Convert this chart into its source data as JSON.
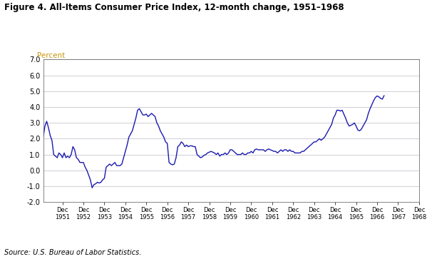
{
  "title": "Figure 4. All-Items Consumer Price Index, 12-month change, 1951–1968",
  "ylabel": "Percent",
  "source": "Source: U.S. Bureau of Labor Statistics.",
  "line_color": "#1a1ab0",
  "background_color": "#ffffff",
  "grid_color": "#c8c8d0",
  "ylim": [
    -2.0,
    7.0
  ],
  "yticks": [
    -2.0,
    -1.0,
    0.0,
    1.0,
    2.0,
    3.0,
    4.0,
    5.0,
    6.0,
    7.0
  ],
  "ytick_labels": [
    "-2.0",
    "-1.0",
    "0.0",
    "1.0",
    "2.0",
    "3.0",
    "4.0",
    "5.0",
    "6.0",
    "7.0"
  ],
  "x_tick_labels": [
    "Dec\n1951",
    "Dec\n1952",
    "Dec\n1953",
    "Dec\n1954",
    "Dec\n1955",
    "Dec\n1956",
    "Dec\n1957",
    "Dec\n1958",
    "Dec\n1959",
    "Dec\n1960",
    "Dec\n1961",
    "Dec\n1962",
    "Dec\n1963",
    "Dec\n1964",
    "Dec\n1965",
    "Dec\n1966",
    "Dec\n1967",
    "Dec\n1968"
  ],
  "values": [
    2.1,
    2.8,
    3.1,
    2.7,
    2.2,
    1.9,
    1.0,
    0.9,
    0.8,
    1.1,
    1.0,
    0.8,
    1.1,
    0.8,
    0.9,
    0.8,
    1.0,
    1.5,
    1.3,
    0.8,
    0.7,
    0.5,
    0.5,
    0.5,
    0.2,
    0.0,
    -0.3,
    -0.6,
    -1.1,
    -0.9,
    -0.85,
    -0.75,
    -0.8,
    -0.75,
    -0.6,
    -0.5,
    0.2,
    0.3,
    0.4,
    0.3,
    0.4,
    0.5,
    0.3,
    0.3,
    0.3,
    0.4,
    0.8,
    1.2,
    1.6,
    2.1,
    2.3,
    2.5,
    2.9,
    3.3,
    3.8,
    3.9,
    3.7,
    3.5,
    3.5,
    3.55,
    3.4,
    3.5,
    3.6,
    3.5,
    3.4,
    3.0,
    2.8,
    2.5,
    2.3,
    2.1,
    1.8,
    1.7,
    0.5,
    0.4,
    0.35,
    0.4,
    0.8,
    1.5,
    1.6,
    1.8,
    1.7,
    1.5,
    1.6,
    1.5,
    1.55,
    1.55,
    1.5,
    1.5,
    1.0,
    0.9,
    0.8,
    0.85,
    0.95,
    1.0,
    1.1,
    1.15,
    1.2,
    1.15,
    1.1,
    1.0,
    1.1,
    0.9,
    1.0,
    1.0,
    1.1,
    1.0,
    1.1,
    1.3,
    1.3,
    1.2,
    1.1,
    1.0,
    1.0,
    1.0,
    1.1,
    1.0,
    1.0,
    1.1,
    1.1,
    1.2,
    1.1,
    1.3,
    1.35,
    1.3,
    1.3,
    1.3,
    1.3,
    1.2,
    1.3,
    1.35,
    1.3,
    1.25,
    1.2,
    1.2,
    1.1,
    1.2,
    1.3,
    1.2,
    1.3,
    1.3,
    1.2,
    1.3,
    1.2,
    1.2,
    1.1,
    1.1,
    1.1,
    1.1,
    1.2,
    1.2,
    1.3,
    1.4,
    1.5,
    1.6,
    1.7,
    1.8,
    1.8,
    1.9,
    2.0,
    1.9,
    2.0,
    2.1,
    2.3,
    2.5,
    2.7,
    2.9,
    3.3,
    3.5,
    3.8,
    3.8,
    3.75,
    3.8,
    3.55,
    3.3,
    3.0,
    2.8,
    2.85,
    2.9,
    3.0,
    2.8,
    2.55,
    2.5,
    2.6,
    2.8,
    3.0,
    3.2,
    3.6,
    3.9,
    4.15,
    4.4,
    4.6,
    4.7,
    4.65,
    4.55,
    4.5,
    4.72
  ]
}
